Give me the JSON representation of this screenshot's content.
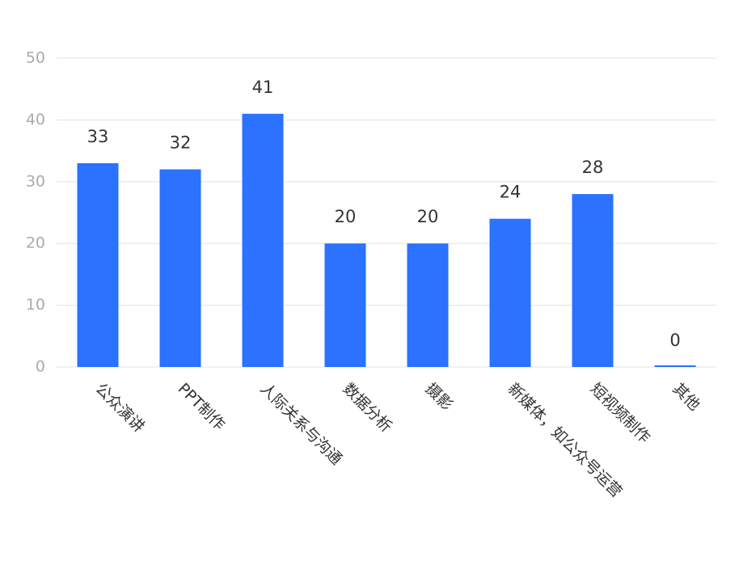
{
  "chart_data": {
    "type": "bar",
    "categories": [
      "公众演讲",
      "PPT制作",
      "人际关系与沟通",
      "数据分析",
      "摄影",
      "新媒体，如公众号运营",
      "短视频制作",
      "其他"
    ],
    "values": [
      33,
      32,
      41,
      20,
      20,
      24,
      28,
      0
    ],
    "color": "#2a72ff",
    "ylim": [
      0,
      50
    ],
    "yticks": [
      0,
      10,
      20,
      30,
      40,
      50
    ],
    "grid": true
  }
}
